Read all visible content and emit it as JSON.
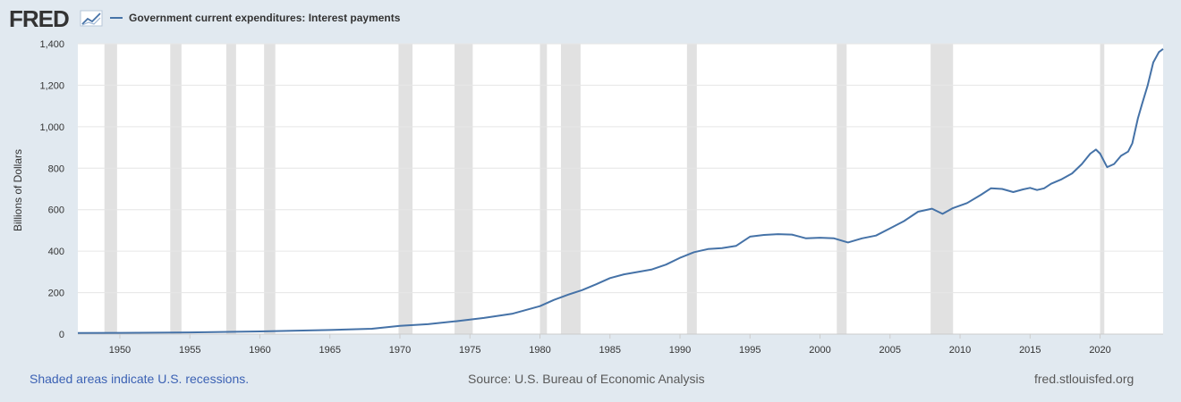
{
  "header": {
    "logo_text": "FRED",
    "legend_label": "Government current expenditures: Interest payments"
  },
  "footer": {
    "recession_note": "Shaded areas indicate U.S. recessions.",
    "source": "Source: U.S. Bureau of Economic Analysis",
    "site": "fred.stlouisfed.org"
  },
  "colors": {
    "background": "#e1e9f0",
    "plot_background": "#ffffff",
    "series": "#4572a7",
    "recession_shading": "#e1e1e1",
    "grid": "#e6e6e6",
    "text": "#333333"
  },
  "chart_data": {
    "type": "line",
    "ylabel": "Billions of Dollars",
    "xlim": [
      1947,
      2024.5
    ],
    "ylim": [
      0,
      1400
    ],
    "x_ticks": [
      1950,
      1955,
      1960,
      1965,
      1970,
      1975,
      1980,
      1985,
      1990,
      1995,
      2000,
      2005,
      2010,
      2015,
      2020
    ],
    "y_ticks": [
      0,
      200,
      400,
      600,
      800,
      1000,
      1200,
      1400
    ],
    "y_tick_labels": [
      "0",
      "200",
      "400",
      "600",
      "800",
      "1,000",
      "1,200",
      "1,400"
    ],
    "grid": true,
    "legend_position": "top-left",
    "recessions": [
      [
        1948.9,
        1949.8
      ],
      [
        1953.6,
        1954.4
      ],
      [
        1957.6,
        1958.3
      ],
      [
        1960.3,
        1961.1
      ],
      [
        1969.9,
        1970.9
      ],
      [
        1973.9,
        1975.2
      ],
      [
        1980.0,
        1980.5
      ],
      [
        1981.5,
        1982.9
      ],
      [
        1990.5,
        1991.2
      ],
      [
        2001.2,
        2001.9
      ],
      [
        2007.9,
        2009.5
      ],
      [
        2020.0,
        2020.3
      ]
    ],
    "series": [
      {
        "name": "Government current expenditures: Interest payments",
        "points": [
          [
            1947,
            5
          ],
          [
            1950,
            6
          ],
          [
            1955,
            8
          ],
          [
            1960,
            13
          ],
          [
            1965,
            20
          ],
          [
            1968,
            26
          ],
          [
            1970,
            40
          ],
          [
            1972,
            48
          ],
          [
            1974,
            62
          ],
          [
            1976,
            78
          ],
          [
            1978,
            98
          ],
          [
            1980,
            135
          ],
          [
            1981,
            165
          ],
          [
            1982,
            190
          ],
          [
            1983,
            212
          ],
          [
            1984,
            240
          ],
          [
            1985,
            270
          ],
          [
            1986,
            288
          ],
          [
            1987,
            300
          ],
          [
            1988,
            312
          ],
          [
            1989,
            335
          ],
          [
            1990,
            368
          ],
          [
            1991,
            395
          ],
          [
            1992,
            410
          ],
          [
            1993,
            415
          ],
          [
            1994,
            425
          ],
          [
            1995,
            470
          ],
          [
            1996,
            478
          ],
          [
            1997,
            482
          ],
          [
            1998,
            480
          ],
          [
            1999,
            462
          ],
          [
            2000,
            465
          ],
          [
            2001,
            462
          ],
          [
            2002,
            442
          ],
          [
            2003,
            462
          ],
          [
            2004,
            475
          ],
          [
            2005,
            510
          ],
          [
            2006,
            545
          ],
          [
            2007,
            590
          ],
          [
            2008,
            605
          ],
          [
            2008.75,
            580
          ],
          [
            2009.5,
            608
          ],
          [
            2010.5,
            632
          ],
          [
            2011.5,
            672
          ],
          [
            2012.2,
            703
          ],
          [
            2013,
            700
          ],
          [
            2013.8,
            685
          ],
          [
            2014.5,
            698
          ],
          [
            2015,
            705
          ],
          [
            2015.5,
            695
          ],
          [
            2016,
            703
          ],
          [
            2016.5,
            725
          ],
          [
            2017.2,
            745
          ],
          [
            2018,
            775
          ],
          [
            2018.7,
            820
          ],
          [
            2019.3,
            870
          ],
          [
            2019.7,
            890
          ],
          [
            2020,
            870
          ],
          [
            2020.5,
            805
          ],
          [
            2021,
            820
          ],
          [
            2021.5,
            860
          ],
          [
            2022,
            880
          ],
          [
            2022.3,
            920
          ],
          [
            2022.7,
            1040
          ],
          [
            2023,
            1110
          ],
          [
            2023.4,
            1200
          ],
          [
            2023.8,
            1310
          ],
          [
            2024.2,
            1360
          ],
          [
            2024.5,
            1375
          ]
        ]
      }
    ]
  }
}
